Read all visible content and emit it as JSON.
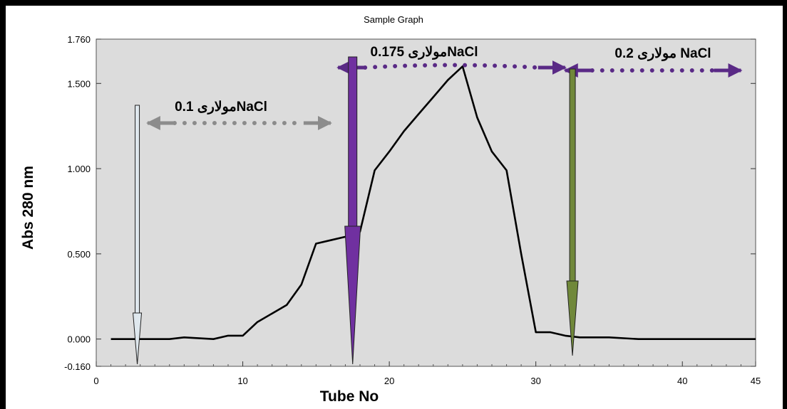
{
  "chart_data": {
    "type": "line",
    "title": "Sample Graph",
    "xlabel": "Tube No",
    "ylabel": "Abs 280 nm",
    "xlim": [
      0,
      45
    ],
    "ylim": [
      -0.16,
      1.76
    ],
    "x_ticks": [
      "0",
      "10",
      "20",
      "30",
      "40",
      "45"
    ],
    "x_tick_values": [
      0,
      10,
      20,
      30,
      40,
      45
    ],
    "y_ticks": [
      "1.760",
      "1.500",
      "1.000",
      "0.500",
      "0.000",
      "-0.160"
    ],
    "y_tick_values": [
      1.76,
      1.5,
      1.0,
      0.5,
      0.0,
      -0.16
    ],
    "grid": false,
    "series": [
      {
        "x": [
          1,
          5,
          6,
          8,
          9,
          10,
          11,
          12,
          13,
          14,
          15,
          16,
          17,
          18,
          19,
          20,
          21,
          22,
          23,
          24,
          25,
          26,
          27,
          28,
          29,
          30,
          31,
          32,
          33,
          35,
          37,
          45
        ],
        "y": [
          0.0,
          0.0,
          0.01,
          0.0,
          0.02,
          0.02,
          0.1,
          0.15,
          0.2,
          0.32,
          0.56,
          0.58,
          0.6,
          0.63,
          0.99,
          1.1,
          1.22,
          1.32,
          1.42,
          1.52,
          1.6,
          1.3,
          1.1,
          0.99,
          0.5,
          0.04,
          0.04,
          0.02,
          0.01,
          0.01,
          0.0,
          0.0
        ],
        "color": "#000000"
      }
    ],
    "annotations": [
      {
        "text": "مولاری 0.1NaCl",
        "kind": "gradient-range",
        "color": "#8c8c8c",
        "x_start": 3.5,
        "x_end": 16
      },
      {
        "text": "مولاری 0.175NaCl",
        "kind": "gradient-range",
        "color": "#5a2a86",
        "x_start": 16.5,
        "x_end": 32
      },
      {
        "text": "مولاری 0.2 NaCl",
        "kind": "gradient-range",
        "color": "#5a2a86",
        "x_start": 32,
        "x_end": 44
      }
    ],
    "markers": [
      {
        "kind": "tube-arrow",
        "x": 2.8,
        "color": "#dfe8ee"
      },
      {
        "kind": "tube-arrow",
        "x": 17.5,
        "color": "#7030a0"
      },
      {
        "kind": "tube-arrow",
        "x": 32.5,
        "color": "#70883a"
      }
    ],
    "colors": {
      "plot_background": "#dcdcdc",
      "line": "#000000"
    }
  }
}
